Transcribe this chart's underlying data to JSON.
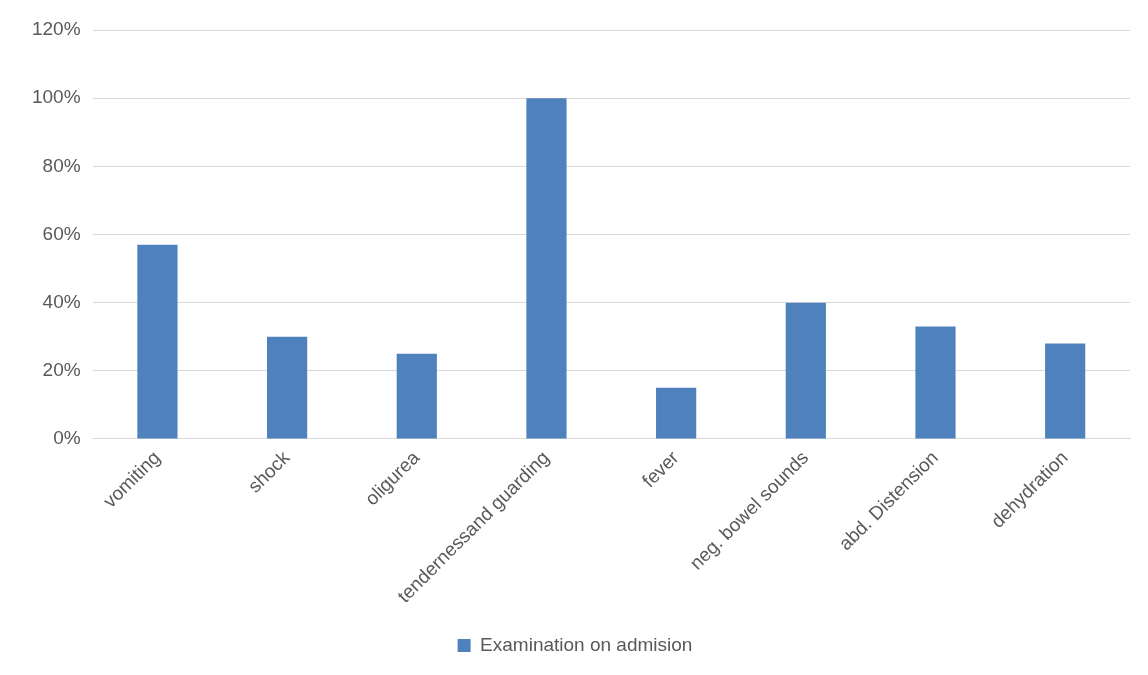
{
  "chart_data": {
    "type": "bar",
    "categories": [
      "vomiting",
      "shock",
      "oligurea",
      "tendernessand guarding",
      "fever",
      "neg. bowel sounds",
      "abd. Distension",
      "dehydration"
    ],
    "series": [
      {
        "name": "Examination on admision",
        "color": "#4f81bd",
        "values": [
          57,
          30,
          25,
          100,
          15,
          40,
          33,
          28
        ]
      }
    ],
    "ylim": [
      0,
      120
    ],
    "yticks": [
      {
        "value": 0,
        "label": "0%"
      },
      {
        "value": 20,
        "label": "20%"
      },
      {
        "value": 40,
        "label": "40%"
      },
      {
        "value": 60,
        "label": "60%"
      },
      {
        "value": 80,
        "label": "80%"
      },
      {
        "value": 100,
        "label": "100%"
      },
      {
        "value": 120,
        "label": "120%"
      }
    ],
    "grid": "y",
    "legend": "bottom"
  }
}
